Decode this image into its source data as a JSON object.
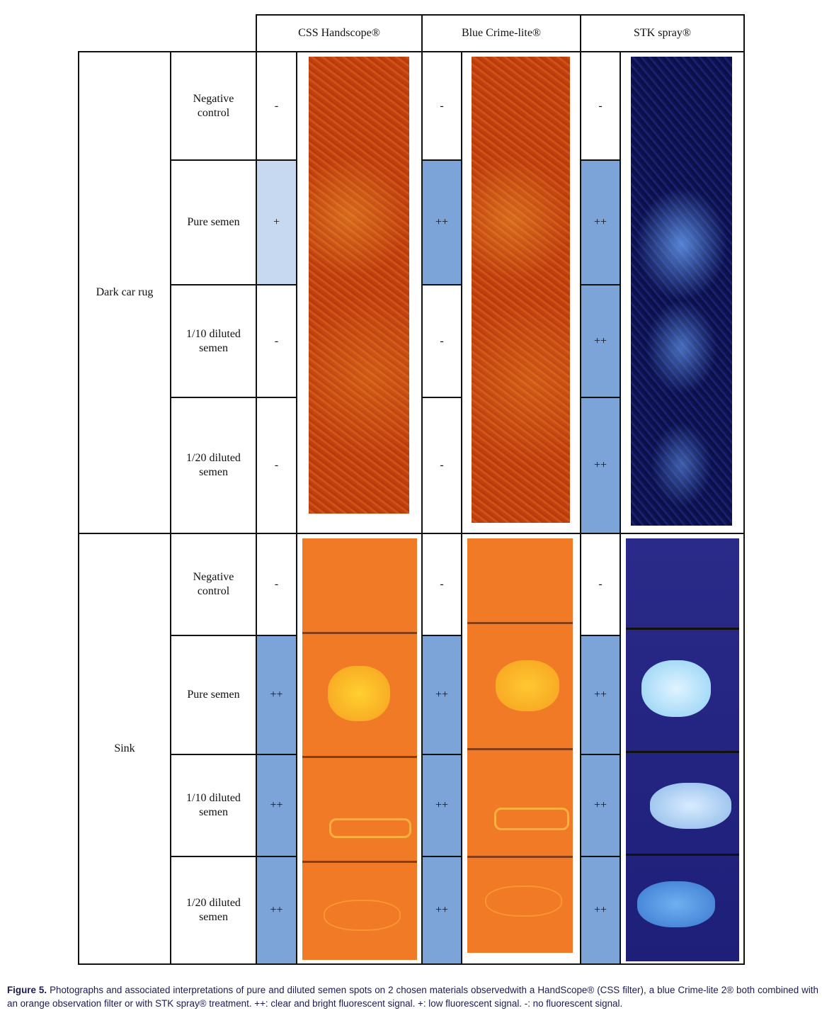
{
  "header": {
    "columns": [
      "CSS Handscope®",
      "Blue Crime-lite®",
      "STK spray®"
    ]
  },
  "table": {
    "groups": [
      {
        "material": "Dark car rug",
        "rows": [
          {
            "condition": "Negative control",
            "results": [
              {
                "text": "-",
                "color": "#ffffff"
              },
              {
                "text": "-",
                "color": "#ffffff"
              },
              {
                "text": "-",
                "color": "#ffffff"
              }
            ]
          },
          {
            "condition": "Pure semen",
            "results": [
              {
                "text": "+",
                "color": "#c6d9f1"
              },
              {
                "text": "++",
                "color": "#7ca4d8"
              },
              {
                "text": "++",
                "color": "#7ca4d8"
              }
            ]
          },
          {
            "condition": "1/10 diluted semen",
            "results": [
              {
                "text": "-",
                "color": "#ffffff"
              },
              {
                "text": "-",
                "color": "#ffffff"
              },
              {
                "text": "++",
                "color": "#7ca4d8"
              }
            ]
          },
          {
            "condition": "1/20 diluted semen",
            "results": [
              {
                "text": "-",
                "color": "#ffffff"
              },
              {
                "text": "-",
                "color": "#ffffff"
              },
              {
                "text": "++",
                "color": "#7ca4d8"
              }
            ]
          }
        ]
      },
      {
        "material": "Sink",
        "rows": [
          {
            "condition": "Negative control",
            "results": [
              {
                "text": "-",
                "color": "#ffffff"
              },
              {
                "text": "-",
                "color": "#ffffff"
              },
              {
                "text": "-",
                "color": "#ffffff"
              }
            ]
          },
          {
            "condition": "Pure semen",
            "results": [
              {
                "text": "++",
                "color": "#7ca4d8"
              },
              {
                "text": "++",
                "color": "#7ca4d8"
              },
              {
                "text": "++",
                "color": "#7ca4d8"
              }
            ]
          },
          {
            "condition": "1/10 diluted semen",
            "results": [
              {
                "text": "++",
                "color": "#7ca4d8"
              },
              {
                "text": "++",
                "color": "#7ca4d8"
              },
              {
                "text": "++",
                "color": "#7ca4d8"
              }
            ]
          },
          {
            "condition": "1/20 diluted semen",
            "results": [
              {
                "text": "++",
                "color": "#7ca4d8"
              },
              {
                "text": "++",
                "color": "#7ca4d8"
              },
              {
                "text": "++",
                "color": "#7ca4d8"
              }
            ]
          }
        ]
      }
    ]
  },
  "caption": {
    "label": "Figure 5.",
    "text": "Photographs and associated interpretations of pure and diluted semen spots on 2 chosen materials observedwith a HandScope® (CSS filter), a blue Crime-lite 2® both combined with an orange observation filter or with STK spray® treatment. ++: clear and bright fluorescent signal. +: low fluorescent signal. -: no fluorescent signal."
  }
}
